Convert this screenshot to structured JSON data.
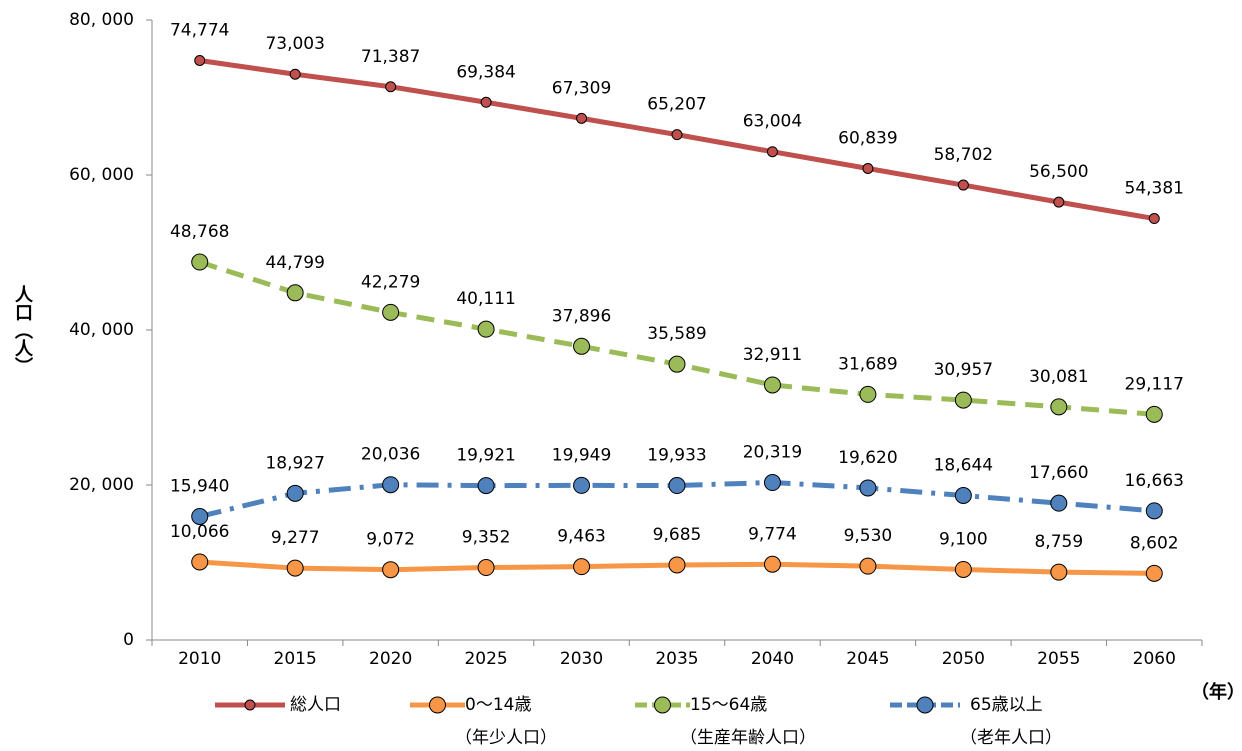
{
  "chart_data": {
    "type": "line",
    "y_label": "人口（人）",
    "x_label": "（年）",
    "categories": [
      "2010",
      "2015",
      "2020",
      "2025",
      "2030",
      "2035",
      "2040",
      "2045",
      "2050",
      "2055",
      "2060"
    ],
    "ylim": [
      0,
      80000
    ],
    "yticks": [
      0,
      {
        "value": 20000,
        "label": "20, 000"
      },
      {
        "value": 40000,
        "label": "40, 000"
      },
      {
        "value": 60000,
        "label": "60, 000"
      },
      {
        "value": 80000,
        "label": "80, 000"
      }
    ],
    "series": [
      {
        "name": "総人口",
        "color": "#c0504d",
        "dash": "solid",
        "marker_size": 5,
        "values": [
          74774,
          73003,
          71387,
          69384,
          67309,
          65207,
          63004,
          60839,
          58702,
          56500,
          54381
        ],
        "value_labels": [
          "74,774",
          "73,003",
          "71,387",
          "69,384",
          "67,309",
          "65,207",
          "63,004",
          "60,839",
          "58,702",
          "56,500",
          "54,381"
        ]
      },
      {
        "name": "0～14歳",
        "legend_note": "（年少人口）",
        "color": "#f79646",
        "dash": "solid",
        "marker_size": 8,
        "values": [
          10066,
          9277,
          9072,
          9352,
          9463,
          9685,
          9774,
          9530,
          9100,
          8759,
          8602
        ],
        "value_labels": [
          "10,066",
          "9,277",
          "9,072",
          "9,352",
          "9,463",
          "9,685",
          "9,774",
          "9,530",
          "9,100",
          "8,759",
          "8,602"
        ]
      },
      {
        "name": "15～64歳",
        "legend_note": "（生産年齢人口）",
        "color": "#9bbb59",
        "dash": "dash",
        "marker_size": 8,
        "values": [
          48768,
          44799,
          42279,
          40111,
          37896,
          35589,
          32911,
          31689,
          30957,
          30081,
          29117
        ],
        "value_labels": [
          "48,768",
          "44,799",
          "42,279",
          "40,111",
          "37,896",
          "35,589",
          "32,911",
          "31,689",
          "30,957",
          "30,081",
          "29,117"
        ]
      },
      {
        "name": "65歳以上",
        "legend_note": "（老年人口）",
        "color": "#4f81bd",
        "dash": "dashdot",
        "marker_size": 8,
        "values": [
          15940,
          18927,
          20036,
          19921,
          19949,
          19933,
          20319,
          19620,
          18644,
          17660,
          16663
        ],
        "value_labels": [
          "15,940",
          "18,927",
          "20,036",
          "19,921",
          "19,949",
          "19,933",
          "20,319",
          "19,620",
          "18,644",
          "17,660",
          "16,663"
        ]
      }
    ]
  }
}
